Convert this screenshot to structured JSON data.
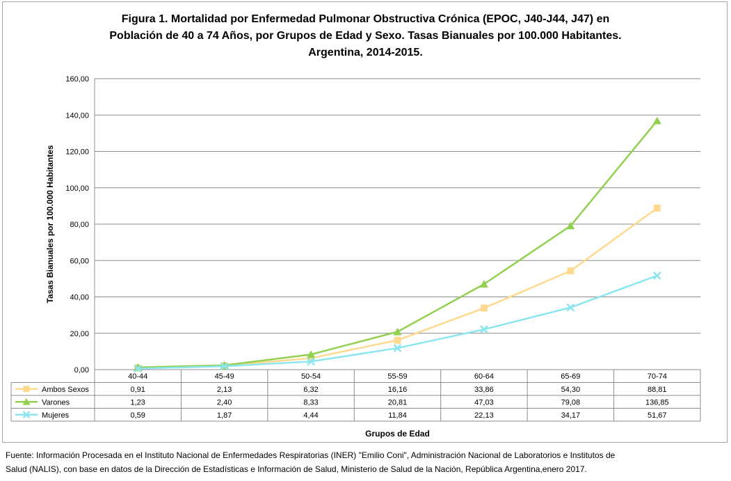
{
  "title_lines": [
    "Figura 1. Mortalidad por Enfermedad Pulmonar Obstructiva Crónica (EPOC, J40-J44, J47) en",
    "Población de 40 a 74 Años, por Grupos de Edad y Sexo. Tasas Bianuales por 100.000 Habitantes.",
    "Argentina, 2014-2015."
  ],
  "source_lines": [
    "Fuente: Información Procesada en el Instituto Nacional de Enfermedades Respiratorias (INER) \"Emilio Coni\", Administración Nacional de Laboratorios e Institutos de",
    "Salud (NALIS), con base en datos de la Dirección de Estadísticas e Información de Salud, Ministerio de Salud de la Nación, República Argentina,enero 2017."
  ],
  "chart_data": {
    "type": "line",
    "title": "Figura 1. Mortalidad por Enfermedad Pulmonar Obstructiva Crónica (EPOC, J40-J44, J47) en Población de 40 a 74 Años, por Grupos de Edad y Sexo. Tasas Bianuales por 100.000 Habitantes. Argentina, 2014-2015.",
    "xlabel": "Grupos de Edad",
    "ylabel": "Tasas Bianuales por 100.000 Habitantes",
    "categories": [
      "40-44",
      "45-49",
      "50-54",
      "55-59",
      "60-64",
      "65-69",
      "70-74"
    ],
    "ylim": [
      0,
      160
    ],
    "yticks": [
      "0,00",
      "20,00",
      "40,00",
      "60,00",
      "80,00",
      "100,00",
      "120,00",
      "140,00",
      "160,00"
    ],
    "grid": true,
    "legend": "data-table",
    "series": [
      {
        "name": "Ambos Sexos",
        "color": "#ffd98f",
        "marker": "square",
        "values": [
          0.91,
          2.13,
          6.32,
          16.16,
          33.86,
          54.3,
          88.81
        ],
        "labels": [
          "0,91",
          "2,13",
          "6,32",
          "16,16",
          "33,86",
          "54,30",
          "88,81"
        ]
      },
      {
        "name": "Varones",
        "color": "#92d050",
        "marker": "triangle",
        "values": [
          1.23,
          2.4,
          8.33,
          20.81,
          47.03,
          79.08,
          136.85
        ],
        "labels": [
          "1,23",
          "2,40",
          "8,33",
          "20,81",
          "47,03",
          "79,08",
          "136,85"
        ]
      },
      {
        "name": "Mujeres",
        "color": "#8be6ef",
        "marker": "x",
        "values": [
          0.59,
          1.87,
          4.44,
          11.84,
          22.13,
          34.17,
          51.67
        ],
        "labels": [
          "0,59",
          "1,87",
          "4,44",
          "11,84",
          "22,13",
          "34,17",
          "51,67"
        ]
      }
    ]
  }
}
